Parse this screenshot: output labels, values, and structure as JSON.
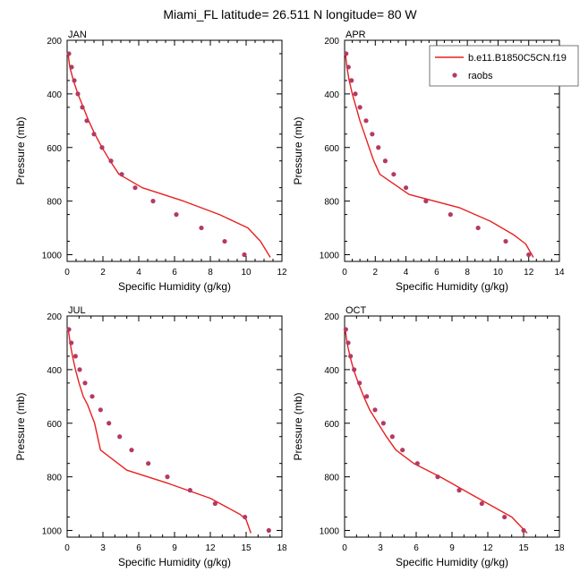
{
  "figure": {
    "title": "Miami_FL  latitude= 26.511 N longitude= 80 W"
  },
  "legend": {
    "model_label": "b.e11.B1850C5CN.f19",
    "obs_label": "raobs",
    "model_color": "#e8201f",
    "obs_color": "#b33a64"
  },
  "chart_data": [
    {
      "type": "line",
      "title": "JAN",
      "xlabel": "Specific Humidity (g/kg)",
      "ylabel": "Pressure (mb)",
      "xlim": [
        0,
        12
      ],
      "xticks": [
        0,
        2,
        4,
        6,
        8,
        10,
        12
      ],
      "ylim": [
        200,
        1025
      ],
      "y_reversed": true,
      "yticks": [
        200,
        400,
        600,
        800,
        1000
      ],
      "series": [
        {
          "name": "b.e11.B1850C5CN.f19",
          "kind": "line",
          "points": [
            [
              0.05,
              250
            ],
            [
              0.15,
              300
            ],
            [
              0.35,
              350
            ],
            [
              0.6,
              400
            ],
            [
              0.9,
              450
            ],
            [
              1.2,
              500
            ],
            [
              1.55,
              550
            ],
            [
              1.95,
              600
            ],
            [
              2.4,
              650
            ],
            [
              2.9,
              700
            ],
            [
              4.2,
              750
            ],
            [
              6.5,
              800
            ],
            [
              8.5,
              850
            ],
            [
              10.1,
              900
            ],
            [
              10.8,
              950
            ],
            [
              11.35,
              1010
            ]
          ]
        },
        {
          "name": "raobs",
          "kind": "scatter",
          "points": [
            [
              0.1,
              250
            ],
            [
              0.25,
              300
            ],
            [
              0.4,
              350
            ],
            [
              0.6,
              400
            ],
            [
              0.85,
              450
            ],
            [
              1.1,
              500
            ],
            [
              1.5,
              550
            ],
            [
              1.95,
              600
            ],
            [
              2.45,
              650
            ],
            [
              3.05,
              700
            ],
            [
              3.8,
              750
            ],
            [
              4.8,
              800
            ],
            [
              6.1,
              850
            ],
            [
              7.5,
              900
            ],
            [
              8.8,
              950
            ],
            [
              9.9,
              1000
            ]
          ]
        }
      ]
    },
    {
      "type": "line",
      "title": "APR",
      "xlabel": "Specific Humidity (g/kg)",
      "ylabel": "Pressure (mb)",
      "xlim": [
        0,
        14
      ],
      "xticks": [
        0,
        2,
        4,
        6,
        8,
        10,
        12,
        14
      ],
      "ylim": [
        200,
        1025
      ],
      "y_reversed": true,
      "yticks": [
        200,
        400,
        600,
        800,
        1000
      ],
      "series": [
        {
          "name": "b.e11.B1850C5CN.f19",
          "kind": "line",
          "points": [
            [
              0.05,
              250
            ],
            [
              0.15,
              300
            ],
            [
              0.3,
              350
            ],
            [
              0.5,
              400
            ],
            [
              0.75,
              450
            ],
            [
              1.0,
              500
            ],
            [
              1.3,
              550
            ],
            [
              1.6,
              600
            ],
            [
              1.9,
              650
            ],
            [
              2.3,
              700
            ],
            [
              4.2,
              775
            ],
            [
              7.5,
              825
            ],
            [
              9.5,
              875
            ],
            [
              11.0,
              925
            ],
            [
              11.8,
              960
            ],
            [
              12.3,
              1010
            ]
          ]
        },
        {
          "name": "raobs",
          "kind": "scatter",
          "points": [
            [
              0.1,
              250
            ],
            [
              0.25,
              300
            ],
            [
              0.45,
              350
            ],
            [
              0.7,
              400
            ],
            [
              1.0,
              450
            ],
            [
              1.4,
              500
            ],
            [
              1.8,
              550
            ],
            [
              2.2,
              600
            ],
            [
              2.65,
              650
            ],
            [
              3.2,
              700
            ],
            [
              4.0,
              750
            ],
            [
              5.3,
              800
            ],
            [
              6.9,
              850
            ],
            [
              8.7,
              900
            ],
            [
              10.5,
              950
            ],
            [
              12.0,
              1000
            ]
          ]
        }
      ]
    },
    {
      "type": "line",
      "title": "JUL",
      "xlabel": "Specific Humidity (g/kg)",
      "ylabel": "Pressure (mb)",
      "xlim": [
        0,
        18
      ],
      "xticks": [
        0,
        3,
        6,
        9,
        12,
        15,
        18
      ],
      "ylim": [
        200,
        1025
      ],
      "y_reversed": true,
      "yticks": [
        200,
        400,
        600,
        800,
        1000
      ],
      "series": [
        {
          "name": "b.e11.B1850C5CN.f19",
          "kind": "line",
          "points": [
            [
              0.1,
              250
            ],
            [
              0.25,
              300
            ],
            [
              0.45,
              350
            ],
            [
              0.7,
              400
            ],
            [
              1.0,
              450
            ],
            [
              1.35,
              500
            ],
            [
              1.7,
              530
            ],
            [
              2.3,
              600
            ],
            [
              2.8,
              700
            ],
            [
              5.0,
              775
            ],
            [
              8.5,
              825
            ],
            [
              12.0,
              880
            ],
            [
              14.5,
              940
            ],
            [
              15.0,
              960
            ],
            [
              15.4,
              1010
            ]
          ]
        },
        {
          "name": "raobs",
          "kind": "scatter",
          "points": [
            [
              0.15,
              250
            ],
            [
              0.35,
              300
            ],
            [
              0.7,
              350
            ],
            [
              1.05,
              400
            ],
            [
              1.5,
              450
            ],
            [
              2.1,
              500
            ],
            [
              2.8,
              550
            ],
            [
              3.5,
              600
            ],
            [
              4.4,
              650
            ],
            [
              5.4,
              700
            ],
            [
              6.8,
              750
            ],
            [
              8.4,
              800
            ],
            [
              10.3,
              850
            ],
            [
              12.4,
              900
            ],
            [
              14.9,
              950
            ],
            [
              16.9,
              1000
            ]
          ]
        }
      ]
    },
    {
      "type": "line",
      "title": "OCT",
      "xlabel": "Specific Humidity (g/kg)",
      "ylabel": "Pressure (mb)",
      "xlim": [
        0,
        18
      ],
      "xticks": [
        0,
        3,
        6,
        9,
        12,
        15,
        18
      ],
      "ylim": [
        200,
        1025
      ],
      "y_reversed": true,
      "yticks": [
        200,
        400,
        600,
        800,
        1000
      ],
      "series": [
        {
          "name": "b.e11.B1850C5CN.f19",
          "kind": "line",
          "points": [
            [
              0.05,
              250
            ],
            [
              0.2,
              300
            ],
            [
              0.45,
              350
            ],
            [
              0.75,
              400
            ],
            [
              1.15,
              450
            ],
            [
              1.6,
              500
            ],
            [
              2.1,
              550
            ],
            [
              2.8,
              600
            ],
            [
              3.5,
              650
            ],
            [
              4.3,
              700
            ],
            [
              5.8,
              750
            ],
            [
              8.0,
              800
            ],
            [
              10.0,
              850
            ],
            [
              12.0,
              900
            ],
            [
              14.0,
              950
            ],
            [
              15.3,
              1010
            ]
          ]
        },
        {
          "name": "raobs",
          "kind": "scatter",
          "points": [
            [
              0.1,
              250
            ],
            [
              0.3,
              300
            ],
            [
              0.5,
              350
            ],
            [
              0.8,
              400
            ],
            [
              1.25,
              450
            ],
            [
              1.85,
              500
            ],
            [
              2.55,
              550
            ],
            [
              3.25,
              600
            ],
            [
              4.0,
              650
            ],
            [
              4.85,
              700
            ],
            [
              6.1,
              750
            ],
            [
              7.8,
              800
            ],
            [
              9.6,
              850
            ],
            [
              11.5,
              900
            ],
            [
              13.4,
              950
            ],
            [
              15.0,
              1000
            ]
          ]
        }
      ]
    }
  ]
}
